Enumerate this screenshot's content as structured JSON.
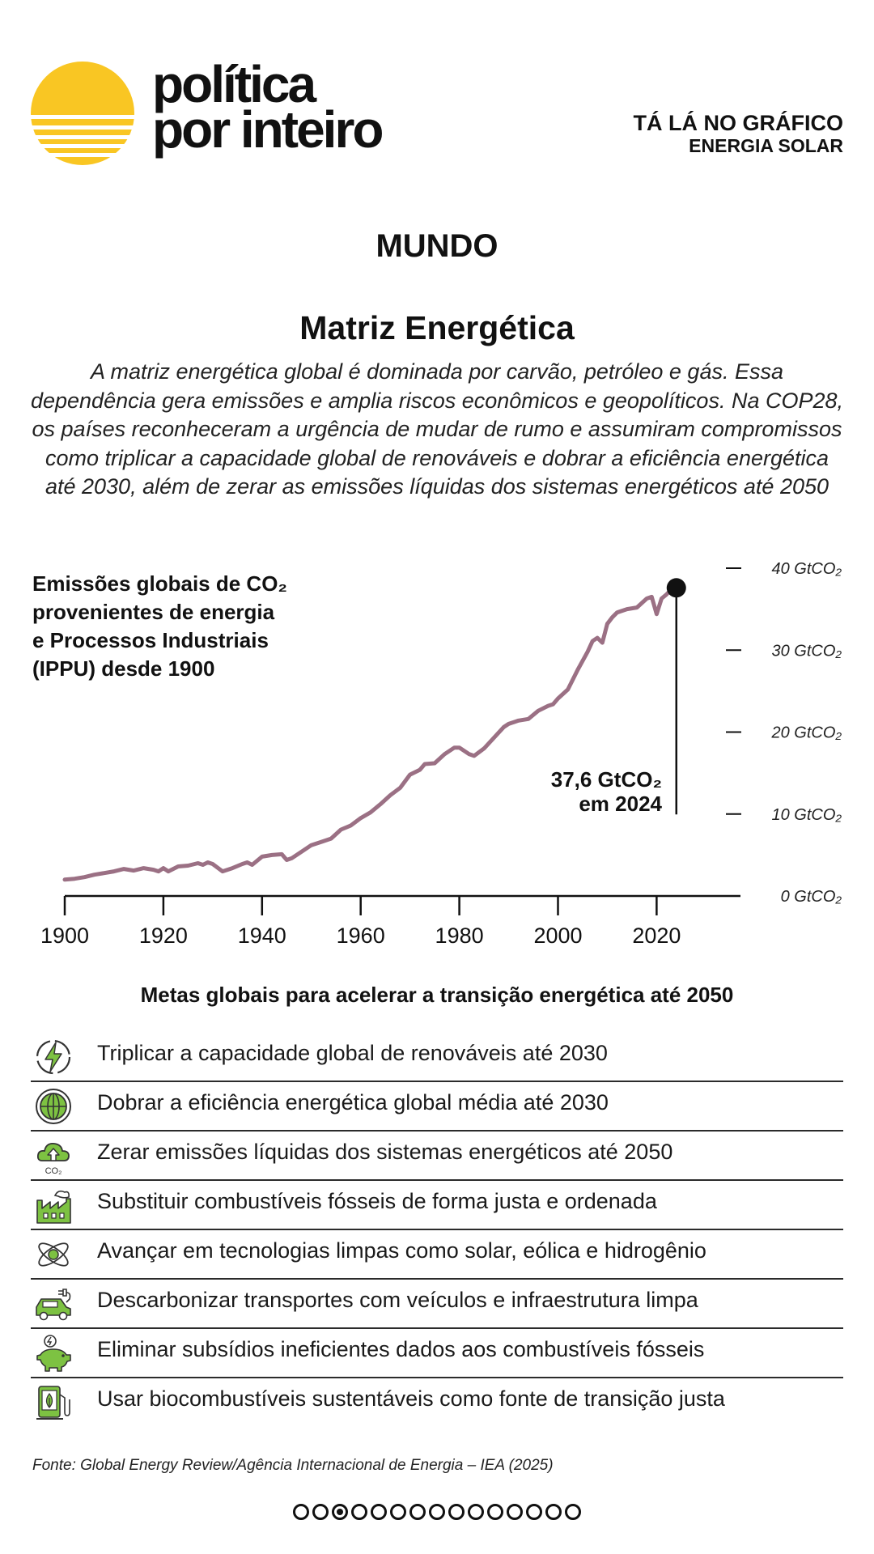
{
  "header": {
    "brand_line1": "política",
    "brand_line2": "por inteiro",
    "tag_line1": "TÁ LÁ NO GRÁFICO",
    "tag_line2": "ENERGIA SOLAR",
    "sun_color": "#F9C623"
  },
  "region": "MUNDO",
  "title": "Matriz Energética",
  "description": "A matriz energética global é dominada por carvão, petróleo e gás. Essa dependência gera emissões e amplia riscos econômicos e geopolíticos. Na COP28, os países reconheceram a urgência de mudar de rumo e assumiram compromissos como triplicar a capacidade global de renováveis e dobrar a eficiência energética até 2030, além de zerar as emissões líquidas dos sistemas energéticos até 2050",
  "chart_data": {
    "type": "line",
    "title": "Emissões globais de CO₂ provenientes de energia e Processos Industriais (IPPU) desde 1900",
    "xlabel": "",
    "ylabel": "",
    "xlim": [
      1900,
      2037
    ],
    "ylim": [
      0,
      40
    ],
    "line_color": "#9B7084",
    "x_ticks": [
      1900,
      1920,
      1940,
      1960,
      1980,
      2000,
      2020
    ],
    "y_ticks": [
      {
        "value": 0,
        "label": "0 GtCO₂"
      },
      {
        "value": 10,
        "label": "10 GtCO₂"
      },
      {
        "value": 20,
        "label": "20 GtCO₂"
      },
      {
        "value": 30,
        "label": "30 GtCO₂"
      },
      {
        "value": 40,
        "label": "40 GtCO₂"
      }
    ],
    "annotation": {
      "line1": "37,6 GtCO₂",
      "line2": "em 2024",
      "x": 2024,
      "y": 37.6
    },
    "series": [
      {
        "name": "Emissões de CO₂",
        "x": [
          1900,
          1902,
          1904,
          1906,
          1908,
          1910,
          1912,
          1914,
          1916,
          1918,
          1919,
          1920,
          1921,
          1923,
          1925,
          1927,
          1928,
          1929,
          1930,
          1932,
          1934,
          1936,
          1937,
          1938,
          1940,
          1942,
          1944,
          1945,
          1946,
          1948,
          1950,
          1952,
          1954,
          1956,
          1958,
          1960,
          1962,
          1964,
          1966,
          1968,
          1970,
          1972,
          1973,
          1975,
          1977,
          1979,
          1980,
          1982,
          1983,
          1985,
          1987,
          1989,
          1990,
          1992,
          1994,
          1996,
          1998,
          1999,
          2000,
          2002,
          2004,
          2006,
          2007,
          2008,
          2009,
          2010,
          2011,
          2012,
          2014,
          2016,
          2018,
          2019,
          2020,
          2021,
          2022,
          2023,
          2024
        ],
        "values": [
          2.0,
          2.1,
          2.3,
          2.6,
          2.8,
          3.0,
          3.3,
          3.1,
          3.4,
          3.2,
          3.0,
          3.4,
          3.0,
          3.6,
          3.7,
          4.0,
          3.8,
          4.1,
          3.9,
          3.0,
          3.4,
          3.9,
          4.1,
          3.8,
          4.8,
          5.0,
          5.1,
          4.4,
          4.6,
          5.4,
          6.2,
          6.6,
          7.0,
          8.1,
          8.6,
          9.5,
          10.2,
          11.2,
          12.3,
          13.2,
          14.8,
          15.4,
          16.1,
          16.2,
          17.3,
          18.1,
          18.1,
          17.3,
          17.1,
          18.0,
          19.3,
          20.6,
          21.0,
          21.4,
          21.6,
          22.6,
          23.2,
          23.4,
          24.1,
          25.2,
          27.6,
          29.8,
          31.1,
          31.5,
          30.9,
          33.2,
          34.0,
          34.6,
          35.0,
          35.2,
          36.3,
          36.5,
          34.4,
          36.3,
          36.8,
          37.4,
          37.6
        ]
      }
    ]
  },
  "goals": {
    "title": "Metas globais para acelerar a transição energética até 2050",
    "icon_color": "#7DC242",
    "items": [
      {
        "icon": "renewable-cycle-icon",
        "label": "Triplicar a capacidade global de renováveis até 2030"
      },
      {
        "icon": "globe-icon",
        "label": "Dobrar a eficiência energética global média até 2030"
      },
      {
        "icon": "cloud-co2-icon",
        "label": "Zerar emissões líquidas dos sistemas energéticos até 2050",
        "icon_text": "CO₂"
      },
      {
        "icon": "factory-icon",
        "label": "Substituir combustíveis fósseis de forma justa e ordenada"
      },
      {
        "icon": "atom-icon",
        "label": "Avançar em tecnologias limpas como solar, eólica e hidrogênio"
      },
      {
        "icon": "electric-car-icon",
        "label": "Descarbonizar transportes com veículos e infraestrutura limpa"
      },
      {
        "icon": "piggy-bank-icon",
        "label": "Eliminar subsídios ineficientes dados aos combustíveis fósseis"
      },
      {
        "icon": "bio-fuel-pump-icon",
        "label": "Usar biocombustíveis sustentáveis como fonte de transição justa"
      }
    ]
  },
  "source": "Fonte: Global Energy Review/Agência Internacional de Energia – IEA (2025)",
  "pager": {
    "count": 15,
    "active": 2
  }
}
